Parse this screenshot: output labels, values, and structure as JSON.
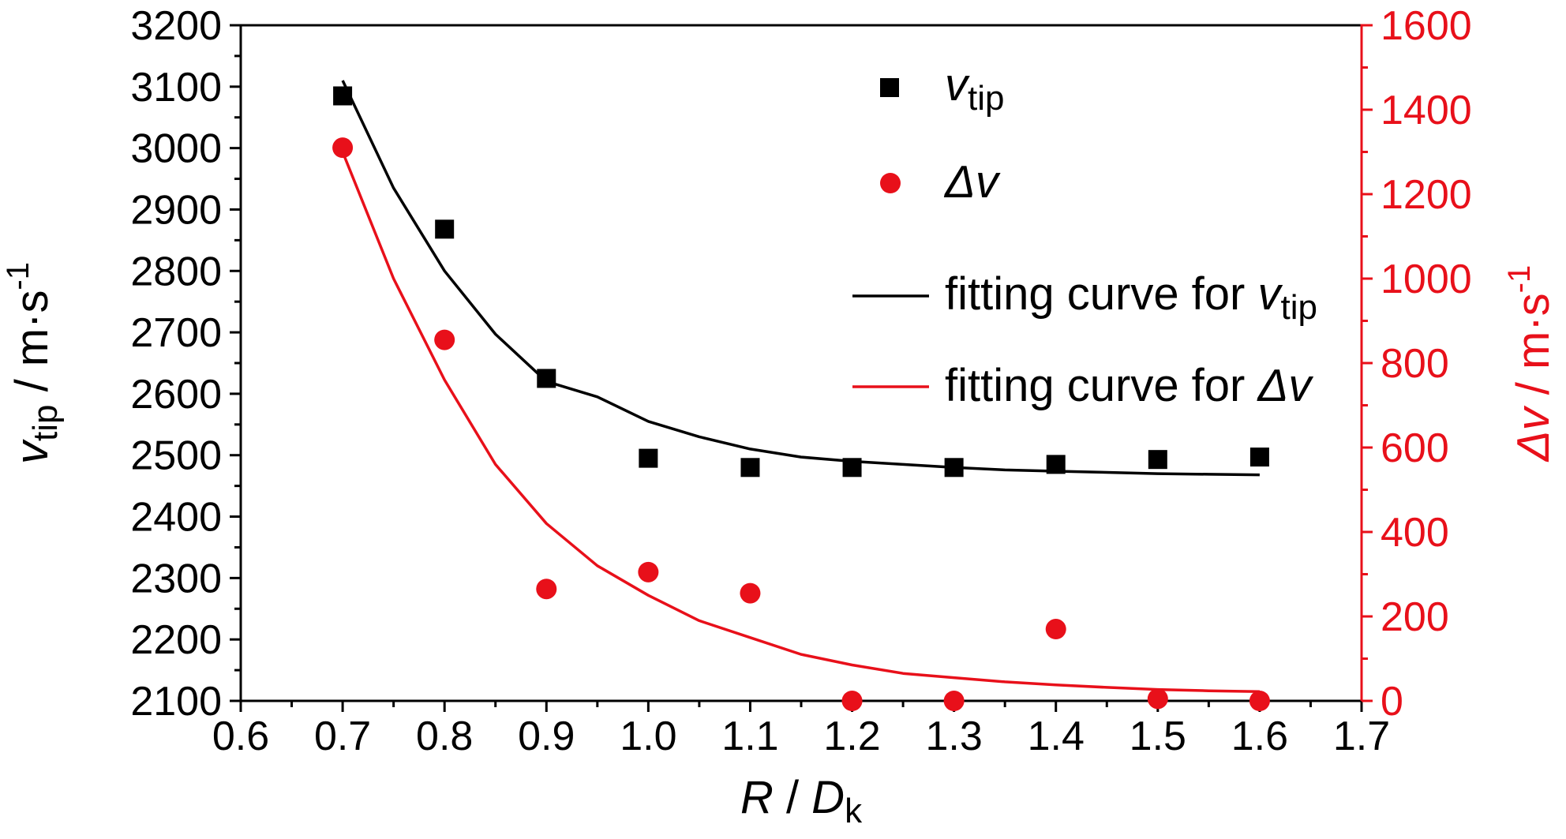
{
  "chart_data": {
    "type": "scatter",
    "x_axis": {
      "label_var": "R",
      "label_sep": " / ",
      "label_var2": "D",
      "label_sub": "k",
      "range": [
        0.6,
        1.7
      ],
      "ticks": [
        0.6,
        0.7,
        0.8,
        0.9,
        1.0,
        1.1,
        1.2,
        1.3,
        1.4,
        1.5,
        1.6,
        1.7
      ],
      "tick_labels": [
        "0.6",
        "0.7",
        "0.8",
        "0.9",
        "1.0",
        "1.1",
        "1.2",
        "1.3",
        "1.4",
        "1.5",
        "1.6",
        "1.7"
      ]
    },
    "y_left_axis": {
      "label_var": "v",
      "label_sub": "tip",
      "label_unit": " / m·s",
      "label_sup": "-1",
      "range": [
        2100,
        3200
      ],
      "ticks": [
        2100,
        2200,
        2300,
        2400,
        2500,
        2600,
        2700,
        2800,
        2900,
        3000,
        3100,
        3200
      ],
      "tick_labels": [
        "2100",
        "2200",
        "2300",
        "2400",
        "2500",
        "2600",
        "2700",
        "2800",
        "2900",
        "3000",
        "3100",
        "3200"
      ],
      "color": "#000000"
    },
    "y_right_axis": {
      "label_var": "Δv",
      "label_unit": " / m·s",
      "label_sup": "-1",
      "range": [
        0,
        1600
      ],
      "ticks": [
        0,
        200,
        400,
        600,
        800,
        1000,
        1200,
        1400,
        1600
      ],
      "tick_labels": [
        "0",
        "200",
        "400",
        "600",
        "800",
        "1000",
        "1200",
        "1400",
        "1600"
      ],
      "color": "#e8101a"
    },
    "series": [
      {
        "name": "v_tip",
        "kind": "scatter",
        "marker": "square",
        "color": "#000000",
        "axis": "left",
        "x": [
          0.7,
          0.8,
          0.9,
          1.0,
          1.1,
          1.2,
          1.3,
          1.4,
          1.5,
          1.6
        ],
        "y": [
          3085,
          2868,
          2625,
          2495,
          2480,
          2480,
          2480,
          2485,
          2493,
          2497
        ]
      },
      {
        "name": "Δv",
        "kind": "scatter",
        "marker": "circle",
        "color": "#e8101a",
        "axis": "right",
        "x": [
          0.7,
          0.8,
          0.9,
          1.0,
          1.1,
          1.2,
          1.3,
          1.4,
          1.5,
          1.6
        ],
        "y": [
          1310,
          855,
          265,
          305,
          255,
          0,
          0,
          170,
          5,
          0
        ]
      },
      {
        "name": "fitting curve for v_tip",
        "kind": "line",
        "color": "#000000",
        "axis": "left",
        "x": [
          0.7,
          0.75,
          0.8,
          0.85,
          0.9,
          0.95,
          1.0,
          1.05,
          1.1,
          1.15,
          1.2,
          1.25,
          1.3,
          1.35,
          1.4,
          1.45,
          1.5,
          1.55,
          1.6
        ],
        "y": [
          3110,
          2935,
          2800,
          2697,
          2620,
          2595,
          2555,
          2530,
          2510,
          2497,
          2490,
          2485,
          2480,
          2476,
          2474,
          2472,
          2470,
          2469,
          2468
        ]
      },
      {
        "name": "fitting curve for Δv",
        "kind": "line",
        "color": "#e8101a",
        "axis": "right",
        "x": [
          0.7,
          0.75,
          0.8,
          0.85,
          0.9,
          0.95,
          1.0,
          1.05,
          1.1,
          1.15,
          1.2,
          1.25,
          1.3,
          1.35,
          1.4,
          1.45,
          1.5,
          1.55,
          1.6
        ],
        "y": [
          1300,
          1000,
          760,
          560,
          420,
          320,
          250,
          190,
          150,
          110,
          85,
          65,
          55,
          45,
          38,
          32,
          27,
          24,
          22
        ]
      }
    ],
    "legend": {
      "position": "top-right",
      "entries": [
        {
          "marker": "square",
          "color": "#000000",
          "text_var": "v",
          "text_sub": "tip"
        },
        {
          "marker": "circle",
          "color": "#e8101a",
          "text_var": "Δv",
          "text_sub": ""
        },
        {
          "marker": "line",
          "color": "#000000",
          "text_pre": "fitting curve for ",
          "text_var": "v",
          "text_sub": "tip"
        },
        {
          "marker": "line",
          "color": "#e8101a",
          "text_pre": "fitting curve for ",
          "text_var": "Δv",
          "text_sub": ""
        }
      ]
    }
  }
}
